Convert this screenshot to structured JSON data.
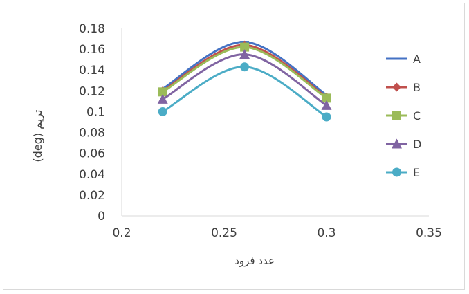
{
  "chart_data": {
    "type": "scatter",
    "title": "",
    "xlabel": "عدد فرود",
    "ylabel": "(deg) تریم",
    "xlim": [
      0.2,
      0.35
    ],
    "ylim": [
      0,
      0.18
    ],
    "x_ticks": [
      "0.2",
      "0.25",
      "0.3",
      "0.35"
    ],
    "y_ticks": [
      "0",
      "0.02",
      "0.04",
      "0.06",
      "0.08",
      "0.1",
      "0.12",
      "0.14",
      "0.16",
      "0.18"
    ],
    "grid": false,
    "smooth_lines": true,
    "legend_position": "right",
    "x": [
      0.22,
      0.26,
      0.3
    ],
    "series": [
      {
        "name": "A",
        "values": [
          0.122,
          0.167,
          0.116
        ],
        "color": "#4472c4",
        "marker": "dash"
      },
      {
        "name": "B",
        "values": [
          0.12,
          0.164,
          0.114
        ],
        "color": "#c0504d",
        "marker": "diamond"
      },
      {
        "name": "C",
        "values": [
          0.119,
          0.162,
          0.113
        ],
        "color": "#9bbb59",
        "marker": "square"
      },
      {
        "name": "D",
        "values": [
          0.112,
          0.155,
          0.106
        ],
        "color": "#8064a2",
        "marker": "triangle"
      },
      {
        "name": "E",
        "values": [
          0.1,
          0.143,
          0.095
        ],
        "color": "#4bacc6",
        "marker": "circle"
      }
    ]
  }
}
